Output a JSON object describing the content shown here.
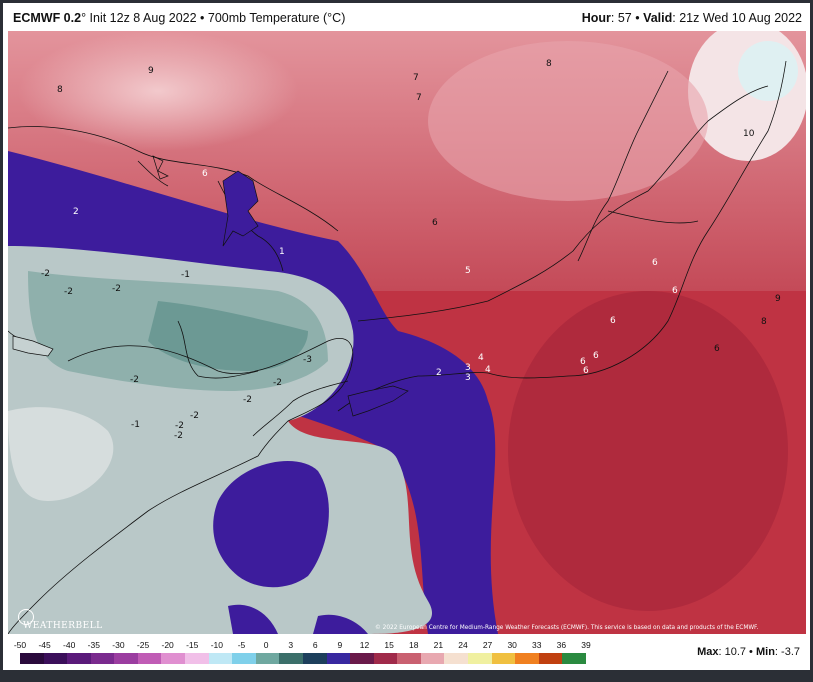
{
  "header": {
    "model": "ECMWF 0.2",
    "init": "° Init 12z 8 Aug 2022 • 700mb Temperature (°C)",
    "hour_label": "Hour",
    "hour_value": ": 57 •",
    "valid_label": "Valid",
    "valid_value": ": 21z Wed 10 Aug 2022"
  },
  "map": {
    "labels": [
      "9",
      "8",
      "7",
      "7",
      "8",
      "10",
      "6",
      "6",
      "2",
      "1",
      "6",
      "5",
      "-2",
      "-1",
      "-2",
      "-2",
      "-3",
      "-2",
      "-2",
      "-2",
      "-1",
      "-2",
      "-2",
      "-2",
      "2",
      "3",
      "3",
      "4",
      "4",
      "6",
      "6",
      "6",
      "6",
      "6",
      "9",
      "8",
      "6"
    ],
    "copyright": "© 2022 European Centre for Medium-Range Weather Forecasts (ECMWF). This service is based on data and products of the ECMWF.",
    "logo_text": "WEATHERBELL"
  },
  "colorbar": {
    "ticks": [
      "-50",
      "-45",
      "-40",
      "-35",
      "-30",
      "-25",
      "-20",
      "-15",
      "-10",
      "-5",
      "0",
      "3",
      "6",
      "9",
      "12",
      "15",
      "18",
      "21",
      "24",
      "27",
      "30",
      "33",
      "36",
      "39"
    ],
    "colors": [
      "#2a0a3c",
      "#3b0f5a",
      "#5a1a7a",
      "#7a2a8e",
      "#9b3da0",
      "#c05cb5",
      "#e08fd0",
      "#f1bfe8",
      "#bfe8f5",
      "#7fd0ea",
      "#6fa8a0",
      "#3b6f6a",
      "#1d3f5c",
      "#3828a0",
      "#6a1a4a",
      "#a02a4a",
      "#c96070",
      "#e8a8b0",
      "#f5e0d0",
      "#f0f0a0",
      "#f0c040",
      "#f08020",
      "#c04010",
      "#2a8a40"
    ]
  },
  "stats": {
    "max_label": "Max",
    "max_value": ": 10.7 •",
    "min_label": "Min",
    "min_value": ": -3.7"
  }
}
